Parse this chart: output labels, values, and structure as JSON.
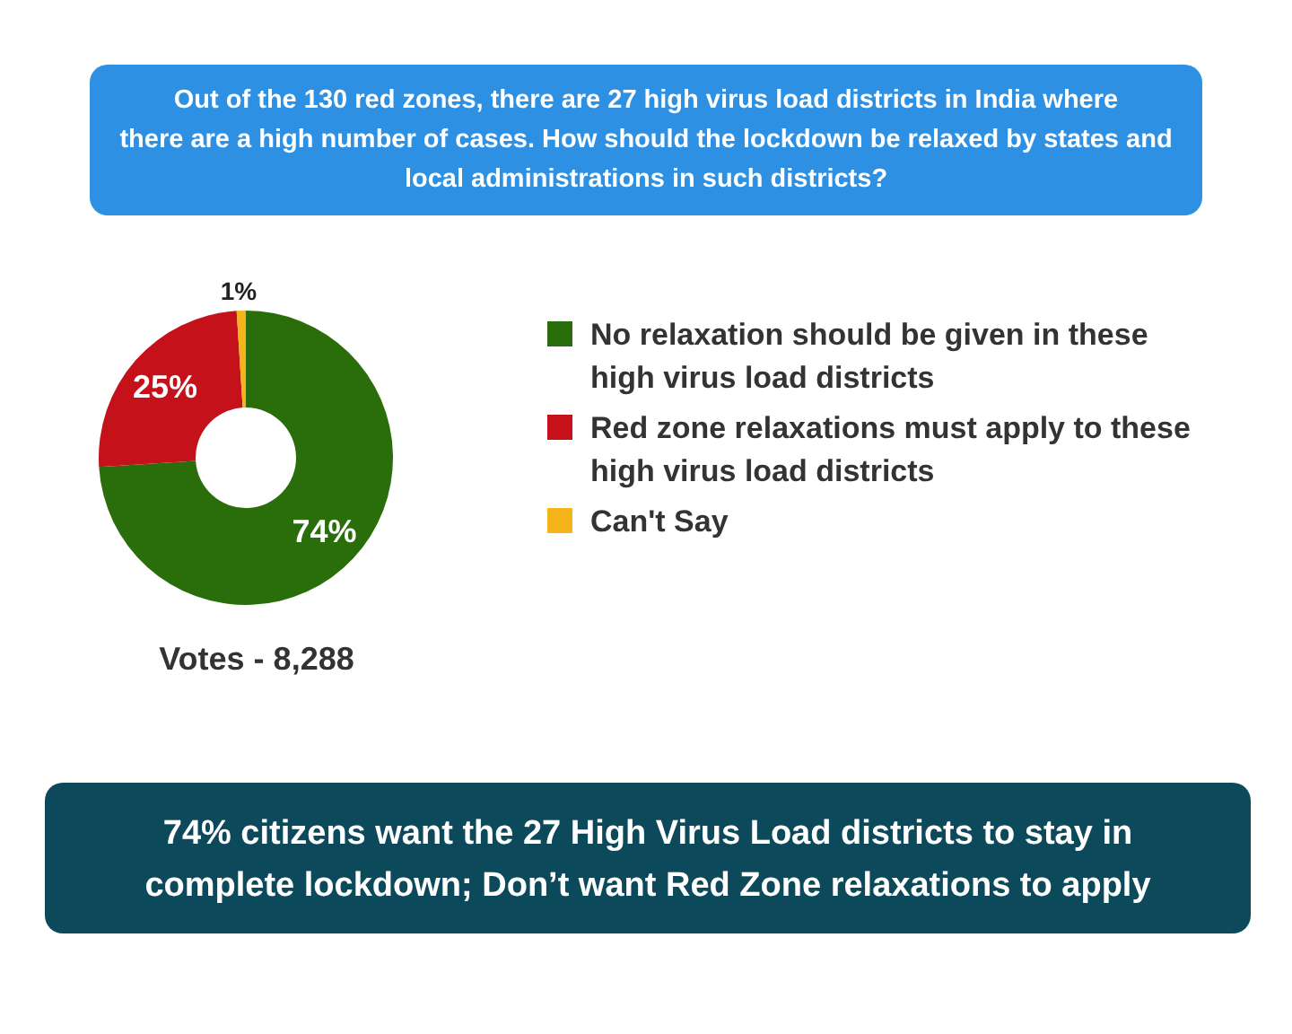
{
  "chart_data": {
    "type": "donut",
    "title": "Out of the 130 red zones, there are 27 high virus load districts in India where there are a high number of cases. How should the lockdown be relaxed by states and local administrations in such districts?",
    "subtitle": "74% citizens want the 27 High Virus Load districts to stay in complete lockdown; Don’t want Red Zone relaxations to apply",
    "categories": [
      "No relaxation should be given in these high virus load districts",
      "Red zone relaxations must apply to these high virus load districts",
      "Can't Say"
    ],
    "values": [
      74,
      25,
      1
    ],
    "colors": [
      "#2a6e0c",
      "#c5111a",
      "#f4b41a"
    ],
    "value_labels": [
      "74%",
      "25%",
      "1%"
    ],
    "legend": "right",
    "annotations": [
      "Votes - 8,288"
    ]
  }
}
